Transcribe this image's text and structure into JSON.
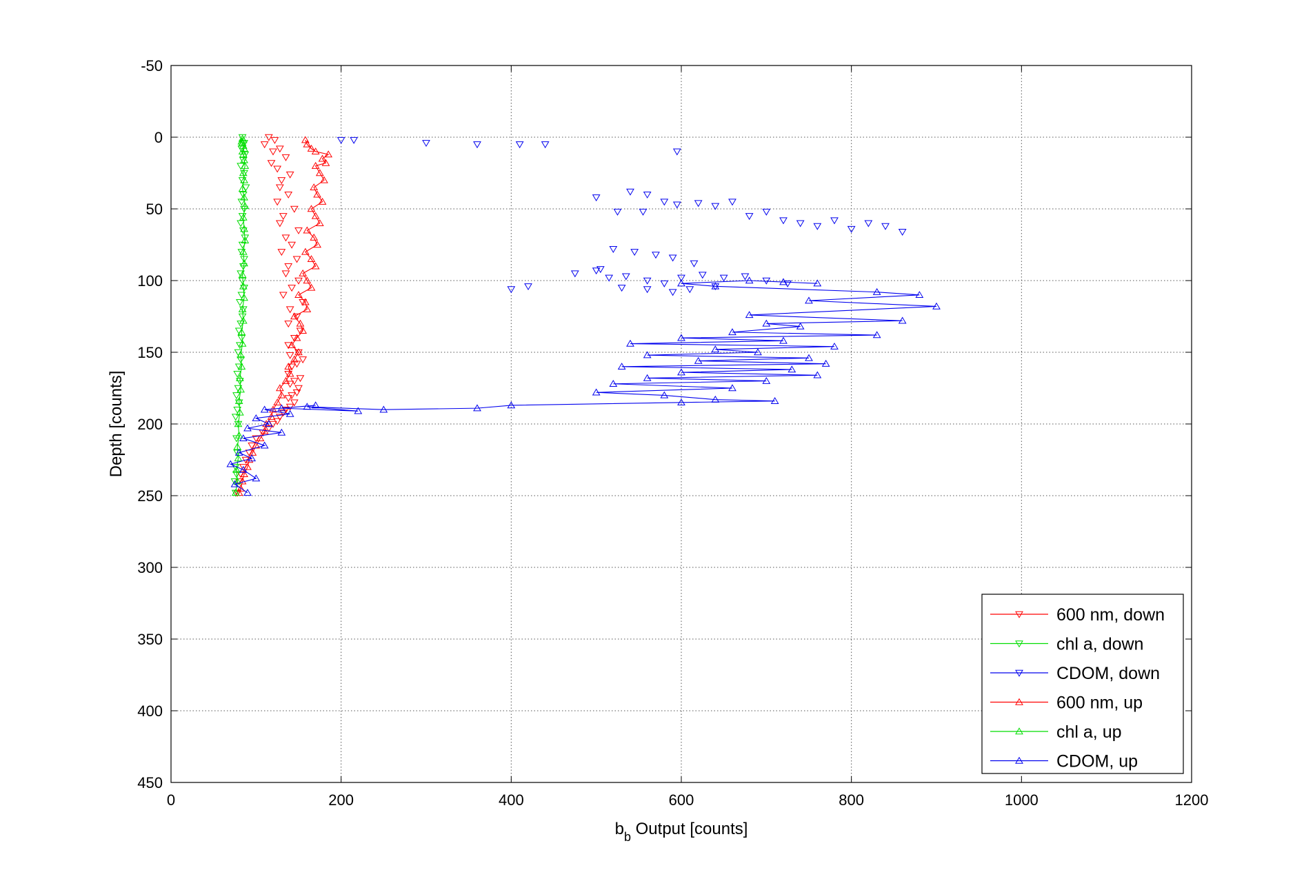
{
  "chart_data": {
    "type": "line",
    "title": "",
    "xlabel": {
      "main": "b",
      "sub": "b",
      "rest": " Output [counts]"
    },
    "ylabel": "Depth [counts]",
    "xlim": [
      0,
      1200
    ],
    "ylim": [
      -50,
      450
    ],
    "y_reversed": true,
    "grid": true,
    "x_ticks": [
      0,
      200,
      400,
      600,
      800,
      1000,
      1200
    ],
    "y_ticks": [
      -50,
      0,
      50,
      100,
      150,
      200,
      250,
      300,
      350,
      400,
      450
    ],
    "legend_position": "bottom-right",
    "series": [
      {
        "name": "600 nm, down",
        "color": "#ff0000",
        "marker": "triangle-down",
        "line": false,
        "x": [
          115,
          122,
          110,
          128,
          120,
          135,
          118,
          125,
          140,
          130,
          128,
          138,
          125,
          145,
          132,
          128,
          150,
          135,
          142,
          130,
          148,
          138,
          135,
          150,
          142,
          132,
          155,
          140,
          148,
          138,
          152,
          145,
          138,
          150,
          140,
          155,
          148,
          142,
          138,
          152,
          145,
          140,
          150,
          148,
          142,
          138,
          145,
          140,
          135,
          132,
          128,
          125,
          120,
          115,
          108,
          100,
          95,
          92,
          88,
          85,
          82,
          80,
          78
        ],
        "y": [
          0,
          2,
          5,
          8,
          10,
          14,
          18,
          22,
          26,
          30,
          35,
          40,
          45,
          50,
          55,
          60,
          65,
          70,
          75,
          80,
          85,
          90,
          95,
          100,
          105,
          110,
          115,
          120,
          125,
          130,
          135,
          140,
          145,
          150,
          152,
          155,
          158,
          160,
          165,
          168,
          170,
          172,
          175,
          178,
          180,
          182,
          185,
          188,
          190,
          192,
          195,
          198,
          200,
          203,
          206,
          210,
          215,
          220,
          225,
          230,
          235,
          240,
          248
        ]
      },
      {
        "name": "chl a, down",
        "color": "#00dd00",
        "marker": "triangle-down",
        "line": false,
        "x": [
          84,
          86,
          83,
          87,
          85,
          82,
          86,
          84,
          88,
          85,
          83,
          86,
          84,
          82,
          85,
          87,
          84,
          83,
          86,
          85,
          82,
          84,
          86,
          83,
          81,
          85,
          84,
          82,
          80,
          83,
          81,
          79,
          82,
          80,
          78,
          81,
          79,
          77,
          80,
          78,
          76,
          79,
          77,
          78,
          76,
          77,
          75,
          76
        ],
        "y": [
          0,
          4,
          8,
          12,
          16,
          20,
          25,
          30,
          35,
          40,
          45,
          50,
          55,
          60,
          65,
          70,
          75,
          80,
          85,
          90,
          95,
          100,
          105,
          110,
          115,
          120,
          125,
          130,
          135,
          140,
          145,
          150,
          155,
          160,
          165,
          170,
          175,
          180,
          185,
          190,
          195,
          200,
          210,
          220,
          230,
          235,
          240,
          248
        ]
      },
      {
        "name": "CDOM, down",
        "color": "#0000ee",
        "marker": "triangle-down",
        "line": false,
        "x": [
          200,
          215,
          300,
          360,
          410,
          440,
          595,
          540,
          560,
          580,
          500,
          525,
          555,
          595,
          620,
          640,
          660,
          680,
          700,
          720,
          740,
          760,
          780,
          800,
          820,
          840,
          860,
          520,
          545,
          570,
          590,
          615,
          500,
          475,
          505,
          515,
          535,
          560,
          580,
          600,
          625,
          650,
          675,
          700,
          725,
          530,
          560,
          590,
          610,
          640,
          400,
          420
        ],
        "y": [
          2,
          2,
          4,
          5,
          5,
          5,
          10,
          38,
          40,
          45,
          42,
          52,
          52,
          47,
          46,
          48,
          45,
          55,
          52,
          58,
          60,
          62,
          58,
          64,
          60,
          62,
          66,
          78,
          80,
          82,
          84,
          88,
          93,
          95,
          92,
          98,
          97,
          100,
          102,
          98,
          96,
          98,
          97,
          100,
          102,
          105,
          106,
          108,
          106,
          104,
          106,
          104
        ]
      },
      {
        "name": "600 nm, up",
        "color": "#ff0000",
        "marker": "triangle-up",
        "line": true,
        "x": [
          80,
          82,
          84,
          86,
          90,
          92,
          96,
          100,
          105,
          110,
          112,
          118,
          120,
          125,
          130,
          128,
          135,
          140,
          138,
          145,
          150,
          142,
          148,
          155,
          152,
          145,
          160,
          158,
          150,
          165,
          160,
          155,
          170,
          165,
          158,
          172,
          168,
          160,
          175,
          170,
          165,
          178,
          172,
          168,
          180,
          175,
          170,
          182,
          178,
          185,
          170,
          165,
          160,
          158
        ],
        "y": [
          248,
          245,
          240,
          235,
          230,
          225,
          220,
          215,
          210,
          205,
          200,
          195,
          190,
          185,
          180,
          175,
          170,
          165,
          160,
          155,
          150,
          145,
          140,
          135,
          130,
          125,
          120,
          115,
          110,
          105,
          100,
          95,
          90,
          85,
          80,
          75,
          70,
          65,
          60,
          55,
          50,
          45,
          40,
          35,
          30,
          25,
          20,
          18,
          15,
          12,
          10,
          8,
          5,
          2
        ]
      },
      {
        "name": "chl a, up",
        "color": "#00dd00",
        "marker": "triangle-up",
        "line": true,
        "x": [
          76,
          78,
          77,
          79,
          78,
          80,
          79,
          81,
          80,
          82,
          81,
          83,
          82,
          84,
          83,
          85,
          84,
          86,
          85,
          84,
          86,
          85,
          87,
          86,
          85,
          87,
          86,
          84,
          86,
          85,
          87,
          86,
          85,
          84,
          86,
          85,
          84,
          83,
          85,
          84
        ],
        "y": [
          248,
          240,
          232,
          224,
          216,
          208,
          200,
          192,
          184,
          176,
          168,
          160,
          152,
          144,
          136,
          128,
          120,
          112,
          104,
          96,
          88,
          80,
          72,
          64,
          56,
          48,
          42,
          36,
          30,
          25,
          20,
          16,
          12,
          10,
          8,
          6,
          4,
          3,
          2,
          1
        ]
      },
      {
        "name": "CDOM, up",
        "color": "#0000ee",
        "marker": "triangle-up",
        "line": true,
        "x": [
          90,
          75,
          100,
          85,
          70,
          95,
          80,
          110,
          85,
          130,
          90,
          115,
          100,
          140,
          110,
          170,
          130,
          220,
          160,
          250,
          360,
          400,
          600,
          710,
          640,
          580,
          500,
          660,
          520,
          700,
          560,
          760,
          600,
          730,
          530,
          770,
          620,
          750,
          560,
          690,
          640,
          780,
          540,
          720,
          600,
          830,
          660,
          740,
          700,
          860,
          680,
          900,
          750,
          880,
          830,
          640,
          600,
          680,
          720,
          760
        ],
        "y": [
          248,
          242,
          238,
          232,
          228,
          224,
          220,
          215,
          210,
          206,
          203,
          200,
          196,
          193,
          190,
          187,
          189,
          191,
          188,
          190,
          189,
          187,
          185,
          184,
          183,
          180,
          178,
          175,
          172,
          170,
          168,
          166,
          164,
          162,
          160,
          158,
          156,
          154,
          152,
          150,
          148,
          146,
          144,
          142,
          140,
          138,
          136,
          132,
          130,
          128,
          124,
          118,
          114,
          110,
          108,
          104,
          102,
          100,
          101,
          102
        ]
      }
    ]
  }
}
